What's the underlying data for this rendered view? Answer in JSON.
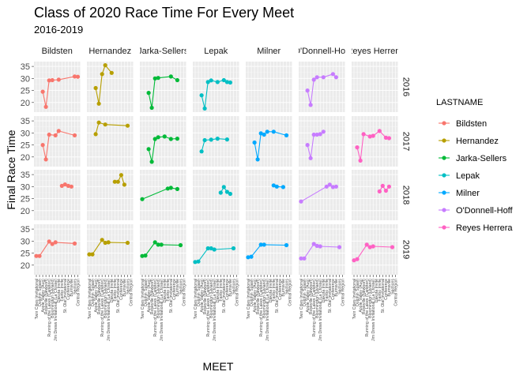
{
  "chart_data": {
    "type": "line",
    "title": "Class of 2020 Race Time For Every Meet",
    "subtitle": "2016-2019",
    "xlabel": "MEET",
    "ylabel": "Final Race Time",
    "legend_title": "LASTNAME",
    "legend_position": "right",
    "grid": true,
    "facet_cols": [
      "Bildsten",
      "Hernandez",
      "Jarka-Sellers",
      "Lepak",
      "Milner",
      "O'Donnell-Hoff",
      "Reyes Herrera"
    ],
    "facet_col_labels": [
      "Bildsten",
      "Hernandez",
      "Jarka-Sellers",
      "Lepak",
      "Milner",
      "O'Donnell-Hoff",
      "Reyes Herrera"
    ],
    "facet_rows": [
      "2016",
      "2017",
      "2018",
      "2019"
    ],
    "ylim": [
      16,
      37
    ],
    "yticks": [
      20,
      25,
      30,
      35
    ],
    "meets": [
      "Twin Cities Invitational",
      "Dolphin Splash",
      "Apple Valley (Aug)",
      "Roseville (Newport)",
      "Running of the Lakes (Carleton)",
      "Bloomington (Hyland)",
      "Jim Drews Invitational (La Crosse)",
      "Dakota Invite",
      "Fairbo Invite",
      "St. Olaf Invitational",
      "Conference",
      "Burnsville",
      "Sections",
      "Central Region"
    ],
    "series": [
      {
        "name": "Bildsten",
        "color": "#F8766D",
        "values": [
          [
            null,
            null,
            24.5,
            18.2,
            29.2,
            29.3,
            null,
            29.5,
            null,
            null,
            null,
            null,
            30.8,
            30.7
          ],
          [
            null,
            null,
            25.0,
            19.0,
            29.3,
            null,
            29.0,
            30.8,
            null,
            null,
            null,
            null,
            29.0,
            null
          ],
          [
            null,
            null,
            null,
            null,
            null,
            null,
            null,
            null,
            30.3,
            30.9,
            30.3,
            30.0,
            null,
            null
          ],
          [
            23.8,
            23.8,
            null,
            null,
            29.8,
            28.8,
            29.5,
            null,
            null,
            null,
            null,
            null,
            29.0,
            null
          ]
        ]
      },
      {
        "name": "Hernandez",
        "color": "#B79F00",
        "values": [
          [
            null,
            null,
            26.0,
            19.5,
            31.8,
            35.5,
            null,
            32.3,
            null,
            null,
            null,
            null,
            null,
            null
          ],
          [
            null,
            null,
            29.5,
            34.3,
            null,
            33.5,
            null,
            null,
            null,
            null,
            null,
            null,
            33.0,
            null
          ],
          [
            null,
            null,
            null,
            null,
            null,
            null,
            null,
            null,
            32.0,
            32.0,
            34.8,
            30.8,
            null,
            null
          ],
          [
            24.5,
            24.5,
            null,
            null,
            30.5,
            29.3,
            29.5,
            null,
            null,
            null,
            null,
            null,
            29.3,
            null
          ]
        ]
      },
      {
        "name": "Jarka-Sellers",
        "color": "#00BA38",
        "values": [
          [
            null,
            null,
            24.0,
            17.8,
            30.0,
            30.2,
            null,
            null,
            null,
            30.8,
            null,
            29.3,
            null,
            null
          ],
          [
            null,
            null,
            23.3,
            18.0,
            27.5,
            28.2,
            null,
            28.5,
            null,
            27.5,
            null,
            27.6,
            null,
            null
          ],
          [
            24.8,
            null,
            null,
            null,
            null,
            null,
            null,
            null,
            29.2,
            29.5,
            null,
            29.0,
            null,
            null
          ],
          [
            23.8,
            24.0,
            null,
            null,
            29.5,
            28.5,
            28.5,
            null,
            null,
            null,
            null,
            null,
            28.3,
            null
          ]
        ]
      },
      {
        "name": "Lepak",
        "color": "#00BFC4",
        "values": [
          [
            null,
            null,
            23.0,
            17.5,
            28.5,
            29.2,
            null,
            28.5,
            null,
            29.3,
            28.5,
            28.3,
            null,
            null
          ],
          [
            null,
            null,
            22.3,
            27.0,
            null,
            27.2,
            null,
            27.6,
            null,
            null,
            27.3,
            null,
            null,
            null
          ],
          [
            null,
            null,
            null,
            null,
            null,
            null,
            null,
            null,
            27.5,
            29.8,
            27.8,
            27.0,
            null,
            null
          ],
          [
            21.3,
            21.5,
            null,
            null,
            27.0,
            27.0,
            26.5,
            null,
            null,
            null,
            null,
            null,
            27.0,
            null
          ]
        ]
      },
      {
        "name": "Milner",
        "color": "#00A9FF",
        "values": [
          [
            null,
            null,
            null,
            null,
            null,
            null,
            null,
            null,
            null,
            null,
            null,
            null,
            null,
            null
          ],
          [
            null,
            null,
            26.0,
            19.0,
            29.8,
            29.3,
            30.5,
            null,
            30.5,
            null,
            null,
            null,
            29.0,
            null
          ],
          [
            null,
            null,
            null,
            null,
            null,
            null,
            null,
            null,
            30.5,
            30.0,
            null,
            29.8,
            null,
            null
          ],
          [
            23.3,
            23.5,
            null,
            null,
            28.5,
            28.5,
            null,
            null,
            null,
            null,
            null,
            null,
            28.3,
            null
          ]
        ]
      },
      {
        "name": "O'Donnell-Hoff",
        "color": "#C77CFF",
        "values": [
          [
            null,
            null,
            25.0,
            19.0,
            29.5,
            30.5,
            null,
            30.5,
            null,
            null,
            31.8,
            30.5,
            null,
            null
          ],
          [
            null,
            null,
            25.0,
            19.5,
            29.3,
            29.3,
            29.5,
            30.5,
            null,
            null,
            null,
            null,
            null,
            null
          ],
          [
            23.8,
            null,
            null,
            null,
            null,
            null,
            null,
            null,
            30.0,
            30.8,
            29.8,
            30.0,
            null,
            null
          ],
          [
            22.8,
            22.8,
            null,
            null,
            28.8,
            28.0,
            27.8,
            null,
            null,
            null,
            null,
            null,
            27.5,
            null
          ]
        ]
      },
      {
        "name": "Reyes Herrera",
        "color": "#FF61C3",
        "values": [
          [
            null,
            null,
            null,
            null,
            null,
            null,
            null,
            null,
            null,
            null,
            null,
            null,
            null,
            null
          ],
          [
            null,
            24.0,
            18.5,
            29.5,
            null,
            28.5,
            28.8,
            null,
            30.8,
            null,
            28.0,
            27.8,
            null,
            null
          ],
          [
            null,
            null,
            null,
            null,
            null,
            null,
            null,
            null,
            28.0,
            30.3,
            28.3,
            30.0,
            null,
            null
          ],
          [
            22.0,
            22.5,
            null,
            null,
            28.5,
            27.5,
            27.8,
            null,
            null,
            null,
            null,
            null,
            27.5,
            null
          ]
        ]
      }
    ]
  }
}
